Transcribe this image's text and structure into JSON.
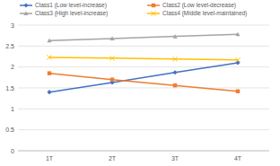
{
  "chart_data": {
    "type": "line",
    "categories": [
      "1T",
      "2T",
      "3T",
      "4T"
    ],
    "series": [
      {
        "name": "Class1 (Low level-increase)",
        "color": "#4472c4",
        "marker": "diamond",
        "values": [
          1.4,
          1.63,
          1.87,
          2.1
        ]
      },
      {
        "name": "Class2 (Low level-decrease)",
        "color": "#ed7d31",
        "marker": "square",
        "values": [
          1.85,
          1.7,
          1.56,
          1.42
        ]
      },
      {
        "name": "Class3 (High level-increase)",
        "color": "#a5a5a5",
        "marker": "triangle",
        "values": [
          2.63,
          2.68,
          2.73,
          2.78
        ]
      },
      {
        "name": "Class4 (Middle level-maintained)",
        "color": "#ffc000",
        "marker": "x",
        "values": [
          2.23,
          2.21,
          2.19,
          2.17
        ]
      }
    ],
    "ylim": [
      0,
      3
    ],
    "yticks": [
      0,
      0.5,
      1,
      1.5,
      2,
      2.5,
      3
    ],
    "grid": true,
    "legend": "top"
  }
}
